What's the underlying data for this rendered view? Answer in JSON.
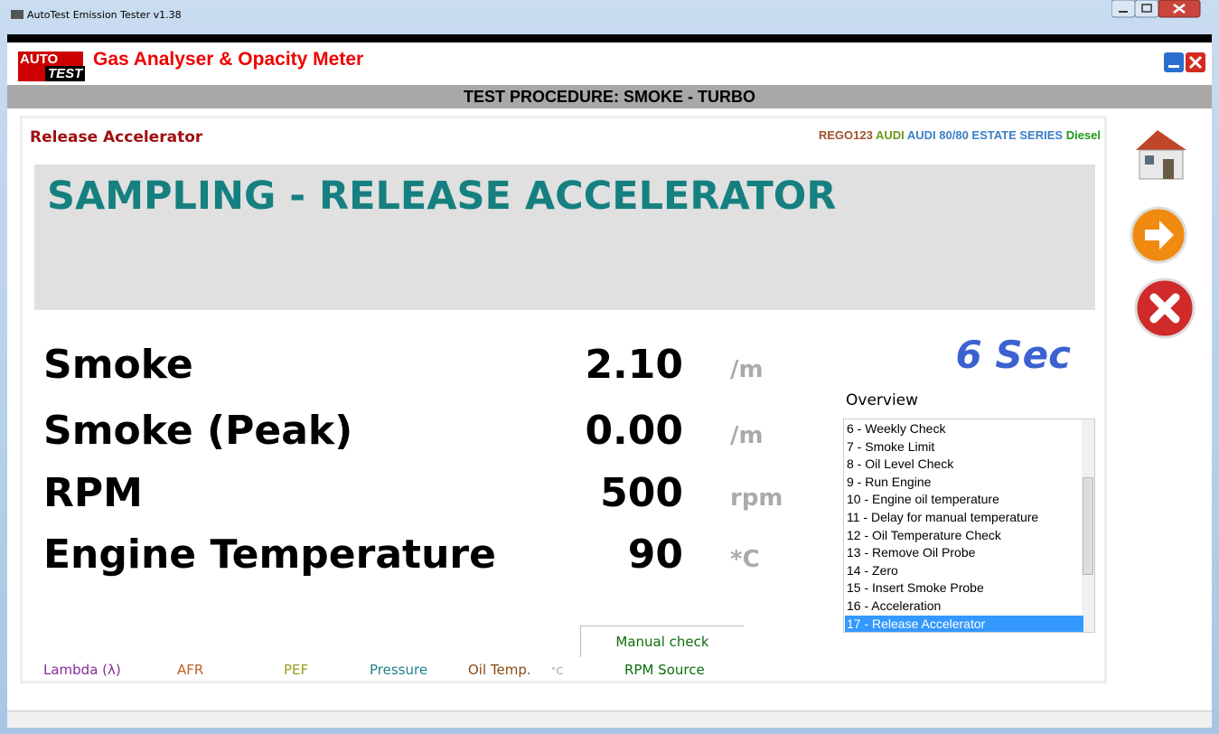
{
  "window": {
    "title": "AutoTest Emission Tester v1.38"
  },
  "header": {
    "logo_top": "AUTO",
    "logo_bottom": "TEST",
    "title": "Gas Analyser & Opacity Meter"
  },
  "procedure": "TEST PROCEDURE: SMOKE - TURBO",
  "step": "Release Accelerator",
  "vehicle": {
    "rego": "REGO123",
    "make": "AUDI",
    "model": "AUDI 80/80 ESTATE SERIES",
    "fuel": "Diesel"
  },
  "banner": "SAMPLING - RELEASE ACCELERATOR",
  "readings": [
    {
      "label": "Smoke",
      "value": "2.10",
      "unit": "/m"
    },
    {
      "label": "Smoke (Peak)",
      "value": "0.00",
      "unit": "/m"
    },
    {
      "label": "RPM",
      "value": "500",
      "unit": "rpm"
    },
    {
      "label": "Engine Temperature",
      "value": "90",
      "unit": "*C"
    }
  ],
  "timer": "6 Sec",
  "overview": {
    "title": "Overview",
    "items": [
      "6 - Weekly Check",
      "7 - Smoke Limit",
      "8 - Oil Level Check",
      "9 - Run Engine",
      "10 - Engine oil temperature",
      "11 - Delay for manual temperature",
      "12 - Oil Temperature Check",
      "13 - Remove Oil Probe",
      "14 - Zero",
      "15 - Insert Smoke Probe",
      "16 - Acceleration",
      "17 - Release Accelerator"
    ],
    "selected": 11
  },
  "manual_check": "Manual check",
  "footer": {
    "lambda": "Lambda (λ)",
    "afr": "AFR",
    "pef": "PEF",
    "pressure": "Pressure",
    "oil_temp": "Oil Temp.",
    "oil_unit": "°C",
    "rpm_source": "RPM Source"
  }
}
